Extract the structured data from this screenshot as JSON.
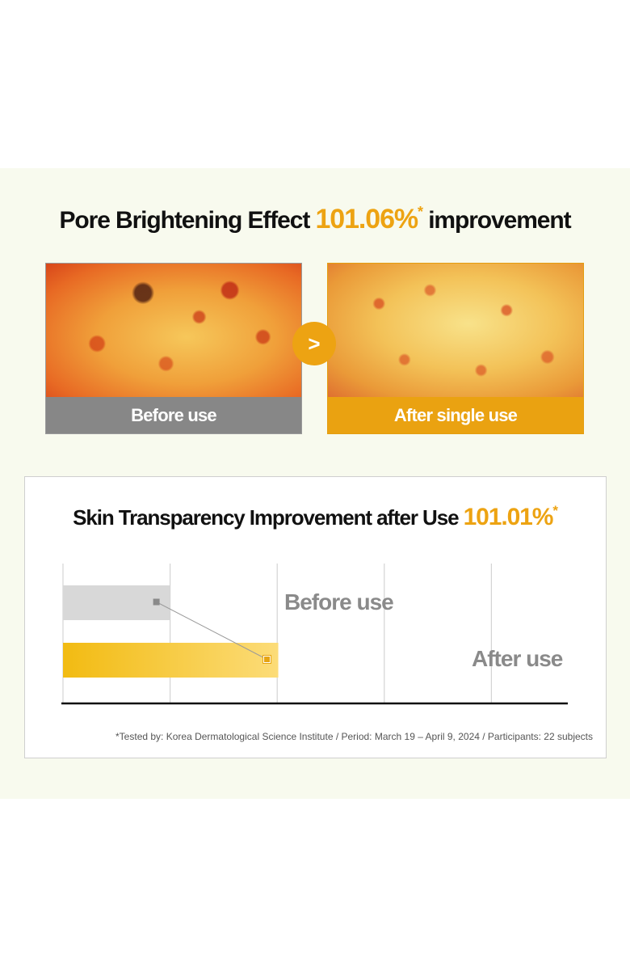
{
  "headline": {
    "prefix": "Pore Brightening Effect",
    "value": "101.06%",
    "asterisk": "*",
    "suffix": "improvement"
  },
  "photos": {
    "before_label": "Before use",
    "after_label": "After single use",
    "arrow_glyph": ">"
  },
  "chart_data": {
    "type": "bar",
    "orientation": "horizontal",
    "title": "Skin Transparency Improvement after Use",
    "title_value": "101.01%",
    "title_asterisk": "*",
    "categories": [
      "Before use",
      "After use"
    ],
    "values": [
      1.0,
      2.01
    ],
    "xlim": [
      0,
      5
    ],
    "grid": true,
    "colors": {
      "before": "#d8d8d8",
      "after_start": "#f2bb12",
      "after_end": "#fcdc78",
      "marker_before": "#8a8a8a",
      "marker_after": "#e6a413",
      "accent": "#eda312"
    }
  },
  "footnote": "*Tested by: Korea Dermatological Science Institute / Period: March 19 – April 9, 2024 / Participants: 22 subjects"
}
